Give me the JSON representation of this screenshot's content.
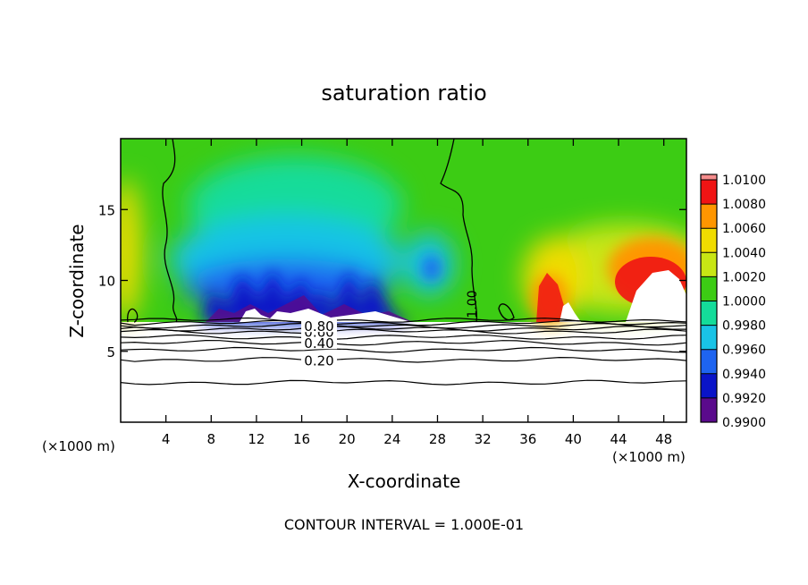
{
  "chart_data": {
    "type": "heatmap",
    "title": "saturation ratio",
    "xlabel": "X-coordinate",
    "ylabel": "Z-coordinate",
    "x_unit": "(×1000 m)",
    "x_unit_right": "(×1000 m)",
    "xlim": [
      0,
      50
    ],
    "ylim": [
      0,
      20
    ],
    "x_ticks": [
      4,
      8,
      12,
      16,
      20,
      24,
      28,
      32,
      36,
      40,
      44,
      48
    ],
    "y_ticks": [
      5,
      10,
      15
    ],
    "colorbar": {
      "levels": [
        0.99,
        0.992,
        0.994,
        0.996,
        0.998,
        1.0,
        1.002,
        1.004,
        1.006,
        1.008,
        1.01
      ],
      "labels": [
        "0.9900",
        "0.9920",
        "0.9940",
        "0.9960",
        "0.9980",
        "1.0000",
        "1.0020",
        "1.0040",
        "1.0060",
        "1.0080",
        "1.0100"
      ],
      "colors": [
        "#5a0a8c",
        "#0a14c8",
        "#1e64f0",
        "#19c3e6",
        "#14dc9a",
        "#3ccc14",
        "#c8e614",
        "#f0dc00",
        "#ff9600",
        "#f01414",
        "#f58c8c"
      ]
    },
    "lower_contours": [
      {
        "level": 0.2,
        "label": "0.20",
        "z": 4.4
      },
      {
        "level": 0.4,
        "label": "0.40",
        "z": 5.6
      },
      {
        "level": 0.6,
        "label": "0.60",
        "z": 6.4
      },
      {
        "level": 0.8,
        "label": "0.80",
        "z": 6.8
      }
    ],
    "unlabeled_contours_z": [
      2.8,
      4.4,
      5.1,
      5.6,
      6.0,
      6.4,
      6.6,
      6.8,
      7.0,
      7.2
    ],
    "contour_100_label": "1.00",
    "footer": "CONTOUR INTERVAL = 1.000E-01"
  }
}
